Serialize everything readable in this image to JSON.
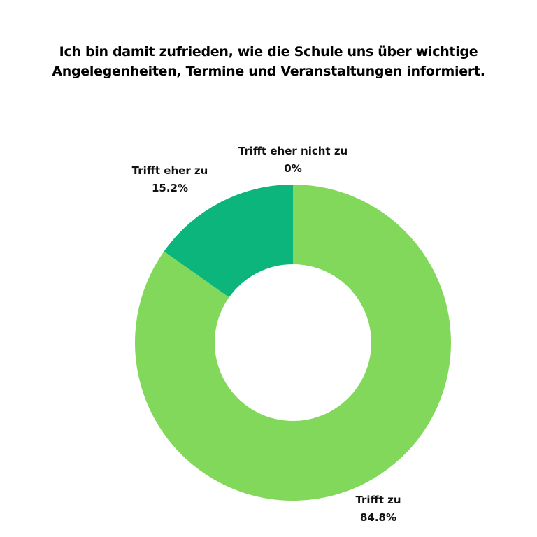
{
  "title_lines": [
    "Ich bin damit zufrieden, wie die Schule uns über wichtige",
    "Angelegenheiten, Termine und Veranstaltungen informiert."
  ],
  "chart_data": {
    "type": "pie",
    "variant": "donut",
    "title": "Ich bin damit zufrieden, wie die Schule uns über wichtige Angelegenheiten, Termine und Veranstaltungen informiert.",
    "categories": [
      "Trifft zu",
      "Trifft eher zu",
      "Trifft eher nicht zu"
    ],
    "values": [
      84.8,
      15.2,
      0
    ],
    "value_labels": [
      "84.8%",
      "15.2%",
      "0%"
    ],
    "colors": [
      "#82D85A",
      "#0BB57B",
      "#0A8F63"
    ]
  }
}
